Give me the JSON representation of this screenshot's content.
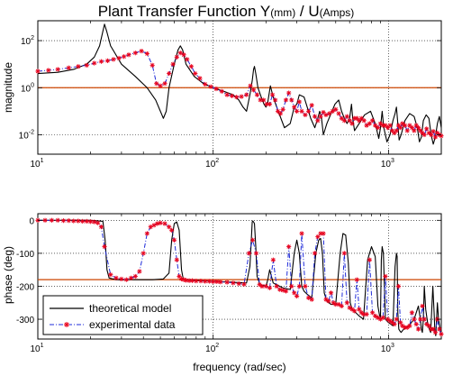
{
  "chart_data": [
    {
      "type": "line",
      "title_main": "Plant Transfer Function Y",
      "title_unit1": "(mm)",
      "title_mid": " / U",
      "title_unit2": "(Amps)",
      "ylabel": "magnitude",
      "xscale": "log",
      "yscale": "log",
      "xlim": [
        10,
        2000
      ],
      "ylim": [
        0.0015,
        700
      ],
      "xticks": [
        {
          "base": "10",
          "exp": "1",
          "value": 10
        },
        {
          "base": "10",
          "exp": "2",
          "value": 100
        },
        {
          "base": "10",
          "exp": "3",
          "value": 1000
        }
      ],
      "yticks": [
        {
          "base": "10",
          "exp": "2",
          "value": 100
        },
        {
          "base": "10",
          "exp": "0",
          "value": 1
        },
        {
          "base": "10",
          "exp": "-2",
          "value": 0.01
        }
      ],
      "grid": true,
      "reference_line": {
        "value": 1,
        "color": "#cc4400"
      },
      "series": [
        {
          "key": "theoretical",
          "color": "#000000",
          "style": "solid",
          "x": [
            10,
            13,
            16,
            19,
            21,
            22.5,
            23.5,
            24,
            24.7,
            26,
            30,
            36,
            42,
            47,
            50,
            52,
            54,
            56,
            60,
            63,
            65,
            67,
            70,
            78,
            88,
            100,
            115,
            130,
            140,
            148,
            155,
            162,
            167,
            170,
            172,
            175,
            180,
            188,
            195,
            200,
            205,
            212,
            220,
            235,
            255,
            275,
            290,
            300,
            310,
            330,
            360,
            380,
            395,
            405,
            415,
            425,
            445,
            470,
            495,
            520,
            540,
            560,
            580,
            600,
            615,
            625,
            640,
            680,
            730,
            790,
            840,
            880,
            900,
            920,
            940,
            980,
            1020,
            1060,
            1090,
            1110,
            1130,
            1150,
            1180,
            1240,
            1320,
            1400,
            1460,
            1500,
            1540,
            1580,
            1640,
            1700,
            1750,
            1800,
            1850,
            1900,
            1950,
            2000
          ],
          "y": [
            4,
            4.5,
            6,
            10,
            20,
            60,
            250,
            500,
            250,
            60,
            10,
            3,
            1,
            0.3,
            0.1,
            0.05,
            0.1,
            1,
            10,
            40,
            60,
            40,
            10,
            3,
            1.5,
            1,
            0.7,
            0.5,
            0.3,
            0.15,
            0.1,
            0.5,
            2,
            6,
            8,
            4,
            1,
            0.4,
            0.2,
            0.15,
            0.25,
            1.2,
            0.4,
            0.1,
            0.02,
            0.03,
            0.15,
            0.2,
            0.5,
            0.4,
            0.05,
            0.02,
            0.05,
            0.1,
            0.05,
            0.01,
            0.03,
            0.08,
            0.2,
            0.3,
            0.1,
            0.05,
            0.03,
            0.05,
            0.2,
            0.05,
            0.015,
            0.03,
            0.07,
            0.1,
            0.03,
            0.007,
            0.02,
            0.1,
            0.02,
            0.005,
            0.01,
            0.04,
            0.08,
            0.15,
            0.03,
            0.006,
            0.01,
            0.04,
            0.08,
            0.06,
            0.02,
            0.005,
            0.008,
            0.04,
            0.07,
            0.05,
            0.01,
            0.004,
            0.008,
            0.03,
            0.06,
            0.02
          ]
        },
        {
          "key": "experimental",
          "color": "#1f2bd9",
          "marker_color": "#e8001c",
          "style": "dashdot",
          "x": [
            10,
            11.5,
            13,
            15,
            17,
            19,
            21,
            23,
            25,
            27,
            29,
            31,
            33,
            36,
            39,
            42,
            45,
            47.5,
            50,
            53,
            56,
            59,
            62,
            65,
            68,
            71,
            75,
            79,
            84,
            90,
            97,
            104,
            112,
            120,
            128,
            136,
            145,
            155,
            163,
            170,
            178,
            186,
            194,
            202,
            210,
            218,
            226,
            234,
            242,
            250,
            260,
            270,
            280,
            290,
            300,
            310,
            320,
            335,
            350,
            365,
            380,
            395,
            410,
            425,
            440,
            460,
            480,
            500,
            520,
            540,
            560,
            580,
            600,
            620,
            640,
            660,
            680,
            700,
            725,
            750,
            780,
            810,
            840,
            870,
            900,
            930,
            960,
            990,
            1020,
            1050,
            1080,
            1110,
            1140,
            1170,
            1200,
            1240,
            1280,
            1320,
            1360,
            1400,
            1440,
            1480,
            1520,
            1560,
            1600,
            1650,
            1700,
            1750,
            1800,
            1850,
            1900,
            1950,
            2000
          ],
          "y": [
            5,
            5.5,
            6,
            7,
            8,
            9,
            11,
            13,
            14,
            16,
            18,
            21,
            25,
            30,
            36,
            28,
            9,
            1.5,
            1.2,
            1.5,
            4,
            10,
            20,
            30,
            25,
            16,
            8,
            4,
            2.5,
            1.4,
            1.1,
            0.9,
            0.7,
            0.5,
            0.45,
            0.4,
            0.42,
            0.5,
            1.2,
            0.8,
            0.5,
            0.3,
            0.3,
            0.2,
            0.2,
            0.5,
            0.3,
            0.1,
            0.08,
            0.12,
            0.3,
            0.6,
            0.3,
            0.15,
            0.1,
            0.25,
            0.1,
            0.07,
            0.1,
            0.18,
            0.06,
            0.04,
            0.06,
            0.09,
            0.07,
            0.08,
            0.1,
            0.12,
            0.08,
            0.05,
            0.04,
            0.06,
            0.04,
            0.03,
            0.05,
            0.05,
            0.04,
            0.05,
            0.04,
            0.025,
            0.03,
            0.04,
            0.025,
            0.02,
            0.03,
            0.025,
            0.025,
            0.02,
            0.025,
            0.015,
            0.012,
            0.015,
            0.025,
            0.02,
            0.03,
            0.025,
            0.015,
            0.025,
            0.02,
            0.015,
            0.025,
            0.02,
            0.015,
            0.012,
            0.01,
            0.018,
            0.012,
            0.01,
            0.014,
            0.008,
            0.012,
            0.01,
            0.009
          ]
        }
      ]
    },
    {
      "type": "line",
      "ylabel": "phase (deg)",
      "xlabel": "frequency (rad/sec)",
      "xscale": "log",
      "xlim": [
        10,
        2000
      ],
      "ylim": [
        -360,
        20
      ],
      "xticks": [
        {
          "base": "10",
          "exp": "1",
          "value": 10
        },
        {
          "base": "10",
          "exp": "2",
          "value": 100
        },
        {
          "base": "10",
          "exp": "3",
          "value": 1000
        }
      ],
      "yticks": [
        {
          "label": "0",
          "value": 0
        },
        {
          "label": "-100",
          "value": -100
        },
        {
          "label": "-200",
          "value": -200
        },
        {
          "label": "-300",
          "value": -300
        }
      ],
      "grid": true,
      "reference_line": {
        "value": -180,
        "color": "#cc4400"
      },
      "legend": {
        "placement": "bottom-left",
        "entries": [
          "theoretical model",
          "experimental data"
        ]
      },
      "series": [
        {
          "key": "theoretical",
          "color": "#000000",
          "style": "solid",
          "x": [
            10,
            15,
            20,
            23.5,
            24.2,
            24.8,
            25.5,
            28,
            35,
            45,
            52,
            56,
            58,
            60,
            62,
            64,
            66,
            67.5,
            70,
            80,
            100,
            130,
            155,
            162,
            165,
            167,
            168,
            170,
            172,
            175,
            178,
            185,
            200,
            205,
            210,
            215,
            220,
            250,
            275,
            290,
            300,
            310,
            320,
            330,
            345,
            365,
            385,
            400,
            410,
            420,
            430,
            445,
            470,
            500,
            530,
            550,
            570,
            590,
            605,
            620,
            635,
            650,
            680,
            720,
            760,
            800,
            840,
            870,
            890,
            900,
            910,
            920,
            935,
            960,
            1000,
            1060,
            1090,
            1110,
            1120,
            1130,
            1145,
            1160,
            1180,
            1220,
            1300,
            1400,
            1480,
            1520,
            1540,
            1560,
            1580,
            1600,
            1630,
            1680,
            1740,
            1790,
            1820,
            1840,
            1860,
            1880,
            1900,
            1930,
            1970,
            2000
          ],
          "y": [
            0,
            0,
            0,
            -3,
            -60,
            -150,
            -175,
            -180,
            -180,
            -180,
            -178,
            -160,
            -60,
            -10,
            -5,
            -30,
            -150,
            -178,
            -180,
            -182,
            -185,
            -188,
            -190,
            -140,
            -60,
            -5,
            -2,
            -5,
            -10,
            -80,
            -170,
            -195,
            -200,
            -180,
            -150,
            -170,
            -190,
            -205,
            -210,
            -100,
            -60,
            -100,
            -200,
            -215,
            -225,
            -235,
            -100,
            -60,
            -55,
            -100,
            -220,
            -245,
            -255,
            -255,
            -100,
            -40,
            -45,
            -130,
            -250,
            -270,
            -275,
            -280,
            -290,
            -300,
            -120,
            -80,
            -110,
            -260,
            -290,
            -295,
            -120,
            -80,
            -100,
            -300,
            -310,
            -320,
            -140,
            -100,
            -110,
            -280,
            -330,
            -335,
            -340,
            -330,
            -320,
            -300,
            -260,
            -300,
            -330,
            -340,
            -300,
            -200,
            -270,
            -320,
            -340,
            -200,
            -280,
            -340,
            -350,
            -300,
            -250,
            -300,
            -330,
            -340
          ]
        },
        {
          "key": "experimental",
          "color": "#1f2bd9",
          "marker_color": "#e8001c",
          "style": "dashdot",
          "x": [
            10,
            11,
            12,
            13,
            14,
            15,
            16,
            17,
            18,
            19,
            20,
            21,
            22,
            23,
            24,
            26,
            28,
            30,
            32,
            34,
            36,
            38,
            40,
            42,
            44,
            46,
            48,
            50,
            53,
            56,
            58,
            60,
            62,
            64,
            66,
            68,
            70,
            73,
            76,
            80,
            85,
            90,
            95,
            100,
            105,
            110,
            120,
            130,
            140,
            150,
            160,
            168,
            176,
            184,
            190,
            200,
            210,
            220,
            230,
            240,
            250,
            260,
            270,
            280,
            290,
            300,
            310,
            320,
            335,
            350,
            365,
            380,
            395,
            410,
            425,
            440,
            455,
            470,
            485,
            500,
            520,
            540,
            560,
            580,
            600,
            620,
            640,
            660,
            680,
            700,
            720,
            750,
            780,
            810,
            840,
            870,
            900,
            930,
            960,
            990,
            1020,
            1050,
            1080,
            1110,
            1140,
            1170,
            1200,
            1240,
            1280,
            1320,
            1360,
            1400,
            1440,
            1480,
            1520,
            1560,
            1600,
            1650,
            1700,
            1750,
            1800,
            1850,
            1900,
            1950,
            2000
          ],
          "y": [
            0,
            0,
            0,
            0,
            -1,
            -1,
            -2,
            -2,
            -3,
            -3,
            -4,
            -5,
            -8,
            -20,
            -80,
            -165,
            -175,
            -178,
            -180,
            -175,
            -170,
            -155,
            -100,
            -40,
            -20,
            -15,
            -10,
            -8,
            -10,
            -20,
            -30,
            -60,
            -120,
            -170,
            -178,
            -180,
            -182,
            -183,
            -183,
            -184,
            -184,
            -185,
            -185,
            -186,
            -186,
            -187,
            -188,
            -190,
            -192,
            -194,
            -100,
            -60,
            -100,
            -195,
            -200,
            -200,
            -205,
            -120,
            -200,
            -210,
            -212,
            -215,
            -80,
            -200,
            -220,
            -230,
            -200,
            -40,
            -200,
            -235,
            -240,
            -100,
            -50,
            -40,
            -40,
            -240,
            -245,
            -220,
            -250,
            -255,
            -255,
            -260,
            -100,
            -250,
            -265,
            -270,
            -275,
            -180,
            -270,
            -280,
            -285,
            -285,
            -120,
            -280,
            -290,
            -295,
            -300,
            -295,
            -170,
            -300,
            -305,
            -310,
            -315,
            -300,
            -200,
            -310,
            -320,
            -325,
            -325,
            -320,
            -280,
            -300,
            -315,
            -330,
            -300,
            -260,
            -300,
            -315,
            -320,
            -330,
            -330,
            -340,
            -300,
            -330,
            -345
          ]
        }
      ]
    }
  ]
}
